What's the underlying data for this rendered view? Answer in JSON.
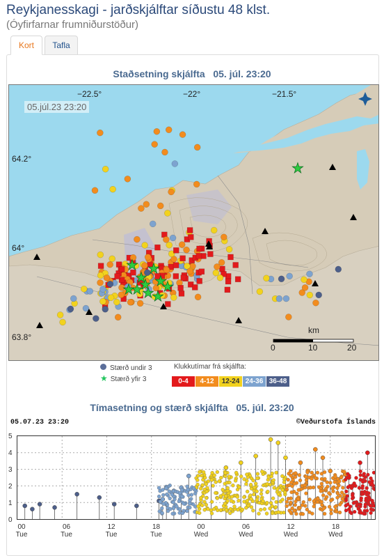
{
  "header": {
    "title": "Reykjanesskagi - jarðskjálftar síðustu 48 klst.",
    "subtitle": "(Óyfirfarnar frumniðurstöður)"
  },
  "tabs": [
    {
      "label": "Kort"
    },
    {
      "label": "Tafla"
    }
  ],
  "map_section": {
    "title": "Staðsetning skjálfta",
    "time": "05. júl. 23:20",
    "datestamp": "05.júl.23  23:20",
    "lon_labels": [
      "−22.5°",
      "−22°",
      "−21.5°"
    ],
    "lat_labels": [
      "64.2°",
      "64°",
      "63.8°"
    ],
    "scale_unit": "km",
    "scale_ticks": [
      "0",
      "10",
      "20"
    ]
  },
  "legend": {
    "small": "Stærð undir 3",
    "large": "Stærð yfir 3",
    "hours_label": "Klukkutímar frá skjálfta:",
    "bins": [
      {
        "label": "0-4",
        "color": "#e31a1c"
      },
      {
        "label": "4-12",
        "color": "#f28c1e"
      },
      {
        "label": "12-24",
        "color": "#f2d21e"
      },
      {
        "label": "24-36",
        "color": "#7da3cf"
      },
      {
        "label": "36-48",
        "color": "#4d5f8a"
      }
    ]
  },
  "time_section": {
    "title": "Tímasetning og stærð skjálfta",
    "time": "05. júl. 23:20",
    "stamp_left": "05.07.23 23:20",
    "stamp_right": "©Veðurstofa Íslands",
    "y_ticks": [
      "5",
      "4",
      "3",
      "2",
      "1",
      "0"
    ],
    "x_ticks": [
      {
        "h": "00",
        "d": "Tue"
      },
      {
        "h": "06",
        "d": "Tue"
      },
      {
        "h": "12",
        "d": "Tue"
      },
      {
        "h": "18",
        "d": "Tue"
      },
      {
        "h": "00",
        "d": "Wed"
      },
      {
        "h": "06",
        "d": "Wed"
      },
      {
        "h": "12",
        "d": "Wed"
      },
      {
        "h": "18",
        "d": "Wed"
      }
    ]
  },
  "chart_data": {
    "type": "scatter",
    "title": "Tímasetning og stærð skjálfta",
    "xlabel": "",
    "ylabel": "",
    "ylim": [
      0,
      5
    ],
    "x_unit": "hours over 48h window",
    "series": [
      {
        "name": "36-48",
        "x": [
          1,
          2,
          3,
          5,
          8,
          11,
          13,
          16,
          19
        ],
        "values": [
          0.8,
          0.6,
          0.9,
          0.7,
          1.5,
          1.3,
          0.9,
          0.8,
          1.1
        ]
      },
      {
        "name": "24-36",
        "x": [
          19.5,
          20,
          21,
          22,
          23
        ],
        "values": [
          1.2,
          0.9,
          1.7,
          1.9,
          2.6
        ]
      },
      {
        "name": "12-24",
        "x": [
          24,
          26,
          28,
          30,
          32,
          34,
          35,
          36
        ],
        "values": [
          1.9,
          2.5,
          3.1,
          3.4,
          3.8,
          4.8,
          4.6,
          3.7
        ]
      },
      {
        "name": "4-12",
        "x": [
          37,
          38,
          39,
          40,
          41,
          42,
          43,
          44
        ],
        "values": [
          2.2,
          3.4,
          2.9,
          4.2,
          3.7,
          2.9,
          2.4,
          2.7
        ]
      },
      {
        "name": "0-4",
        "x": [
          44.5,
          45,
          46,
          47,
          47.5
        ],
        "values": [
          2.5,
          2.0,
          3.4,
          4.0,
          2.1
        ]
      }
    ]
  }
}
